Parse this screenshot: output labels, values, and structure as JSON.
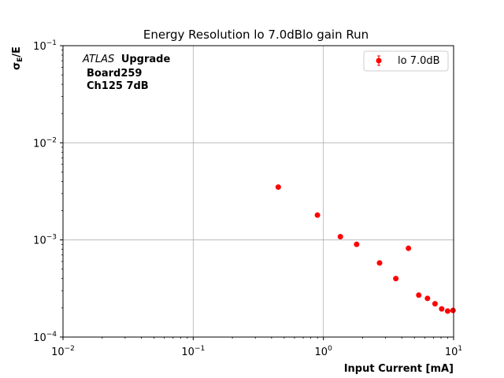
{
  "chart_data": {
    "type": "scatter",
    "title": "Energy Resolution lo 7.0dBlo gain Run",
    "xlabel": "Input Current [mA]",
    "ylabel": "σE/E",
    "ylabel_main": "σ",
    "ylabel_sub": "E",
    "ylabel_tail": "/E",
    "xscale": "log",
    "yscale": "log",
    "xlim": [
      0.01,
      10
    ],
    "ylim": [
      0.0001,
      0.1
    ],
    "grid": true,
    "legend_position": "top-right",
    "x_ticks": [
      {
        "base": "10",
        "exp": "−2",
        "value": 0.01
      },
      {
        "base": "10",
        "exp": "−1",
        "value": 0.1
      },
      {
        "base": "10",
        "exp": "0",
        "value": 1
      },
      {
        "base": "10",
        "exp": "1",
        "value": 10
      }
    ],
    "y_ticks": [
      {
        "base": "10",
        "exp": "−4",
        "value": 0.0001
      },
      {
        "base": "10",
        "exp": "−3",
        "value": 0.001
      },
      {
        "base": "10",
        "exp": "−2",
        "value": 0.01
      },
      {
        "base": "10",
        "exp": "−1",
        "value": 0.1
      }
    ],
    "annotation": {
      "line1_italic": "ATLAS",
      "line1_bold": "Upgrade",
      "line2": "Board259",
      "line3": "Ch125 7dB"
    },
    "series": [
      {
        "name": "lo 7.0dB",
        "color": "#ff0000",
        "points": [
          {
            "x": 0.45,
            "y": 0.0035
          },
          {
            "x": 0.9,
            "y": 0.0018
          },
          {
            "x": 1.35,
            "y": 0.00108
          },
          {
            "x": 1.8,
            "y": 0.0009
          },
          {
            "x": 2.7,
            "y": 0.00058
          },
          {
            "x": 3.6,
            "y": 0.0004
          },
          {
            "x": 4.5,
            "y": 0.00082
          },
          {
            "x": 5.4,
            "y": 0.00027
          },
          {
            "x": 6.3,
            "y": 0.00025
          },
          {
            "x": 7.2,
            "y": 0.00022
          },
          {
            "x": 8.1,
            "y": 0.000195
          },
          {
            "x": 9.0,
            "y": 0.000185
          },
          {
            "x": 9.9,
            "y": 0.000188
          }
        ]
      }
    ]
  }
}
